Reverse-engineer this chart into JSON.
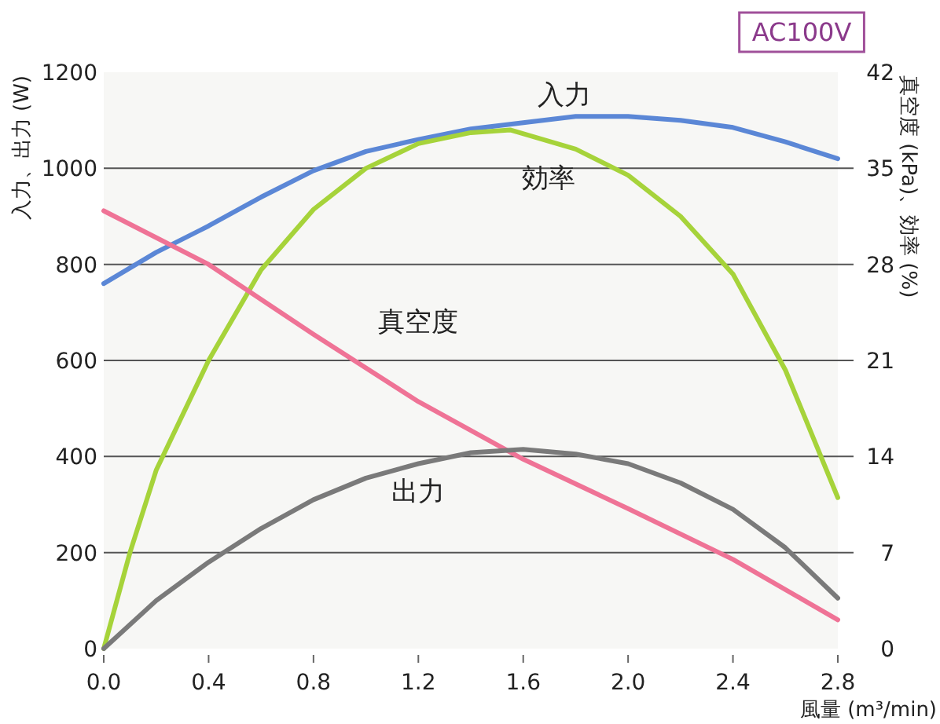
{
  "chart_data": {
    "type": "line",
    "title": "AC100V",
    "xlabel": "風量 (m³/min)",
    "ylabel": "入力、出力 (W)",
    "y2label": "真空度 (kPa)、効率 (%)",
    "xlim": [
      0,
      2.8
    ],
    "xticks": [
      {
        "value": 0,
        "label": "0.0"
      },
      {
        "value": 0.4,
        "label": "0.4"
      },
      {
        "value": 0.8,
        "label": "0.8"
      },
      {
        "value": 1.2,
        "label": "1.2"
      },
      {
        "value": 1.6,
        "label": "1.6"
      },
      {
        "value": 2.0,
        "label": "2.0"
      },
      {
        "value": 2.4,
        "label": "2.4"
      },
      {
        "value": 2.8,
        "label": "2.8"
      }
    ],
    "ylim": [
      0,
      1200
    ],
    "yticks": [
      0,
      200,
      400,
      600,
      800,
      1000,
      1200
    ],
    "y2lim": [
      0,
      42
    ],
    "y2ticks": [
      0,
      7,
      14,
      21,
      28,
      35,
      42
    ],
    "grid": "y",
    "marker": "none",
    "line_style": "solid",
    "series": [
      {
        "name": "入力",
        "color": "#5b87d6",
        "x": [
          0,
          0.2,
          0.4,
          0.6,
          0.8,
          1.0,
          1.2,
          1.4,
          1.6,
          1.8,
          2.0,
          2.2,
          2.4,
          2.6,
          2.8
        ],
        "values": [
          760,
          825,
          880,
          940,
          995,
          1035,
          1060,
          1082,
          1095,
          1108,
          1108,
          1100,
          1085,
          1055,
          1020
        ]
      },
      {
        "name": "効率",
        "color": "#a6d33a",
        "axis": "y2",
        "x": [
          0,
          0.1,
          0.2,
          0.4,
          0.6,
          0.8,
          1.0,
          1.2,
          1.4,
          1.55,
          1.8,
          2.0,
          2.2,
          2.4,
          2.6,
          2.8
        ],
        "values": [
          0,
          7,
          13,
          21,
          27.6,
          32,
          35,
          36.8,
          37.6,
          37.8,
          36.4,
          34.5,
          31.5,
          27.3,
          20.3,
          11
        ]
      },
      {
        "name": "真空度",
        "color": "#ef7396",
        "axis": "y2",
        "x": [
          0,
          0.4,
          0.8,
          1.2,
          1.6,
          2.0,
          2.4,
          2.8
        ],
        "values": [
          31.9,
          28,
          22.9,
          18,
          13.8,
          10.2,
          6.5,
          2.1
        ]
      },
      {
        "name": "出力",
        "color": "#7a7a7a",
        "x": [
          0,
          0.2,
          0.4,
          0.6,
          0.8,
          1.0,
          1.2,
          1.4,
          1.6,
          1.8,
          2.0,
          2.2,
          2.4,
          2.6,
          2.8
        ],
        "values": [
          0,
          100,
          180,
          250,
          310,
          355,
          385,
          408,
          415,
          405,
          385,
          345,
          290,
          210,
          105
        ]
      }
    ]
  }
}
